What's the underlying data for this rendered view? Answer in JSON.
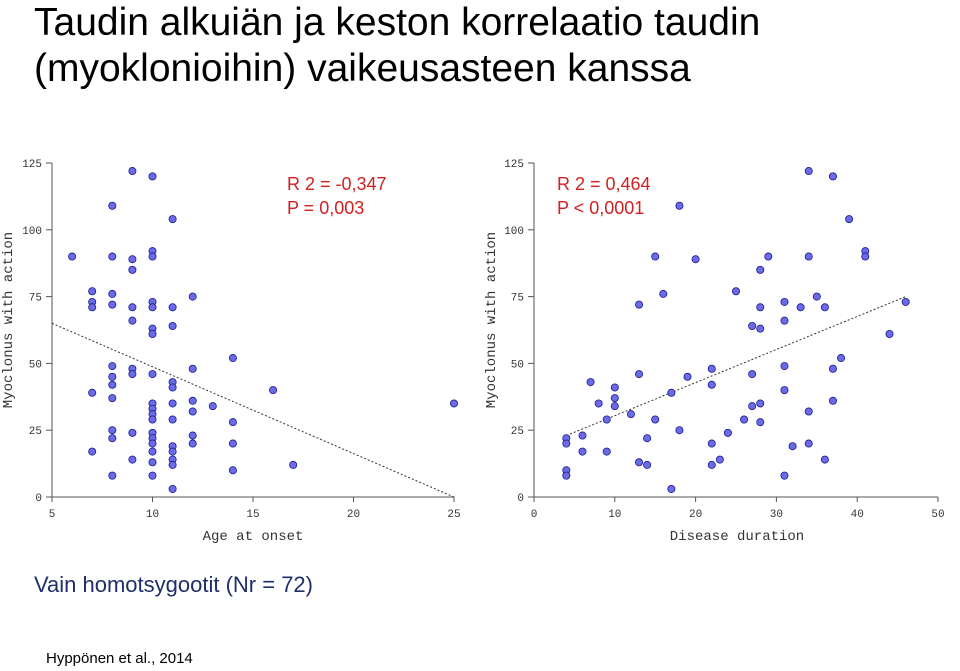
{
  "title_line1": "Taudin alkuiän ja keston korrelaatio taudin",
  "title_line2": "(myoklonioihin) vaikeusasteen kanssa",
  "subtitle": "Vain homotsygootit (Nr = 72)",
  "credit": "Hyppönen et al., 2014",
  "colors": {
    "point": "#6b6be8",
    "point_edge": "#1a1a8c",
    "annotation": "#d42020",
    "axis": "#555555"
  },
  "chart_data": [
    {
      "type": "scatter",
      "xlabel": "Age at onset",
      "ylabel": "Myoclonus with action",
      "xlim": [
        5,
        25
      ],
      "ylim": [
        0,
        125
      ],
      "xticks": [
        "5",
        "10",
        "15",
        "20",
        "25"
      ],
      "yticks": [
        "0",
        "25",
        "50",
        "75",
        "100",
        "125"
      ],
      "annotation_r2": "R 2 = -0,347",
      "annotation_p": "P = 0,003",
      "trendline": {
        "x1": 5,
        "y1": 65,
        "x2": 25,
        "y2": 0
      },
      "points": [
        [
          9,
          122
        ],
        [
          10,
          120
        ],
        [
          8,
          109
        ],
        [
          11,
          104
        ],
        [
          10,
          92
        ],
        [
          6,
          90
        ],
        [
          8,
          90
        ],
        [
          9,
          89
        ],
        [
          10,
          90
        ],
        [
          9,
          85
        ],
        [
          7,
          77
        ],
        [
          8,
          76
        ],
        [
          12,
          75
        ],
        [
          7,
          73
        ],
        [
          8,
          72
        ],
        [
          10,
          73
        ],
        [
          7,
          71
        ],
        [
          9,
          71
        ],
        [
          10,
          71
        ],
        [
          11,
          71
        ],
        [
          9,
          66
        ],
        [
          11,
          64
        ],
        [
          10,
          63
        ],
        [
          10,
          61
        ],
        [
          14,
          52
        ],
        [
          8,
          49
        ],
        [
          9,
          48
        ],
        [
          12,
          48
        ],
        [
          9,
          46
        ],
        [
          10,
          46
        ],
        [
          8,
          45
        ],
        [
          11,
          43
        ],
        [
          8,
          42
        ],
        [
          11,
          41
        ],
        [
          16,
          40
        ],
        [
          7,
          39
        ],
        [
          8,
          37
        ],
        [
          12,
          36
        ],
        [
          10,
          35
        ],
        [
          11,
          35
        ],
        [
          13,
          34
        ],
        [
          25,
          35
        ],
        [
          10,
          33
        ],
        [
          12,
          32
        ],
        [
          10,
          31
        ],
        [
          10,
          29
        ],
        [
          11,
          29
        ],
        [
          14,
          28
        ],
        [
          8,
          25
        ],
        [
          9,
          24
        ],
        [
          10,
          24
        ],
        [
          12,
          23
        ],
        [
          8,
          22
        ],
        [
          10,
          22
        ],
        [
          10,
          20
        ],
        [
          12,
          20
        ],
        [
          14,
          20
        ],
        [
          11,
          19
        ],
        [
          7,
          17
        ],
        [
          10,
          17
        ],
        [
          11,
          17
        ],
        [
          9,
          14
        ],
        [
          11,
          14
        ],
        [
          10,
          13
        ],
        [
          11,
          12
        ],
        [
          17,
          12
        ],
        [
          14,
          10
        ],
        [
          8,
          8
        ],
        [
          10,
          8
        ],
        [
          11,
          3
        ]
      ]
    },
    {
      "type": "scatter",
      "xlabel": "Disease duration",
      "ylabel": "Myoclonus with action",
      "xlim": [
        0,
        50
      ],
      "ylim": [
        0,
        125
      ],
      "xticks": [
        "0",
        "10",
        "20",
        "30",
        "40",
        "50"
      ],
      "yticks": [
        "0",
        "25",
        "50",
        "75",
        "100",
        "125"
      ],
      "annotation_r2": "R 2 = 0,464",
      "annotation_p": "P < 0,0001",
      "trendline": {
        "x1": 4,
        "y1": 23,
        "x2": 46,
        "y2": 75
      },
      "points": [
        [
          34,
          122
        ],
        [
          37,
          120
        ],
        [
          18,
          109
        ],
        [
          39,
          104
        ],
        [
          41,
          92
        ],
        [
          15,
          90
        ],
        [
          20,
          89
        ],
        [
          29,
          90
        ],
        [
          34,
          90
        ],
        [
          41,
          90
        ],
        [
          28,
          85
        ],
        [
          16,
          76
        ],
        [
          25,
          77
        ],
        [
          35,
          75
        ],
        [
          46,
          73
        ],
        [
          13,
          72
        ],
        [
          31,
          73
        ],
        [
          36,
          71
        ],
        [
          28,
          71
        ],
        [
          33,
          71
        ],
        [
          31,
          66
        ],
        [
          27,
          64
        ],
        [
          28,
          63
        ],
        [
          44,
          61
        ],
        [
          38,
          52
        ],
        [
          31,
          49
        ],
        [
          22,
          48
        ],
        [
          37,
          48
        ],
        [
          13,
          46
        ],
        [
          27,
          46
        ],
        [
          19,
          45
        ],
        [
          7,
          43
        ],
        [
          22,
          42
        ],
        [
          10,
          41
        ],
        [
          17,
          39
        ],
        [
          31,
          40
        ],
        [
          10,
          37
        ],
        [
          8,
          35
        ],
        [
          28,
          35
        ],
        [
          10,
          34
        ],
        [
          27,
          34
        ],
        [
          37,
          36
        ],
        [
          34,
          32
        ],
        [
          12,
          31
        ],
        [
          26,
          29
        ],
        [
          15,
          29
        ],
        [
          9,
          29
        ],
        [
          28,
          28
        ],
        [
          18,
          25
        ],
        [
          24,
          24
        ],
        [
          6,
          23
        ],
        [
          4,
          22
        ],
        [
          14,
          22
        ],
        [
          4,
          20
        ],
        [
          22,
          20
        ],
        [
          32,
          19
        ],
        [
          34,
          20
        ],
        [
          9,
          17
        ],
        [
          6,
          17
        ],
        [
          23,
          14
        ],
        [
          36,
          14
        ],
        [
          13,
          13
        ],
        [
          14,
          12
        ],
        [
          22,
          12
        ],
        [
          4,
          10
        ],
        [
          4,
          8
        ],
        [
          31,
          8
        ],
        [
          17,
          3
        ]
      ]
    }
  ]
}
